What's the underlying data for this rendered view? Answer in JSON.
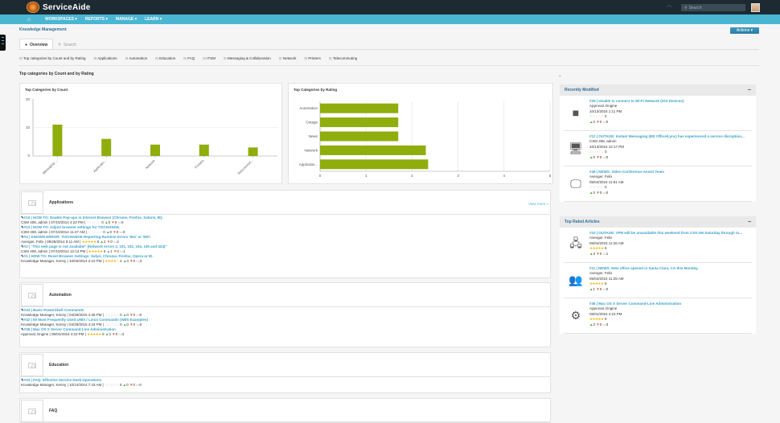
{
  "app": {
    "name": "ServiceAide",
    "search_placeholder": "Search"
  },
  "nav": {
    "items": [
      "WORKSPACES ▾",
      "REPORTS ▾",
      "MANAGE ▾",
      "LEARN ▾"
    ]
  },
  "page": {
    "breadcrumb": "Knowledge Management",
    "actions_label": "Actions ▾"
  },
  "tabs": {
    "overview": "Overview",
    "search": "Search"
  },
  "anchors": [
    "Top categories by Count and by Rating",
    "Applications",
    "Automation",
    "Education",
    "FAQ",
    "ITSM",
    "Messaging & Collaboration",
    "Network",
    "Printers",
    "Telecommuting"
  ],
  "section_title": "Top categories by Count and by Rating",
  "chart_data": [
    {
      "type": "bar",
      "title": "Top Categories by Count",
      "categories": [
        "Messaging ...",
        "Applicatio...",
        "Network",
        "Printers",
        "Telecommut..."
      ],
      "values": [
        11,
        6,
        4,
        4,
        3
      ],
      "yticks": [
        "0",
        "10",
        "20"
      ],
      "ylim": [
        0,
        20
      ],
      "color": "#8fad0c"
    },
    {
      "type": "bar",
      "orientation": "horizontal",
      "title": "Top Categories by Rating",
      "categories": [
        "Automation",
        "Outage",
        "News",
        "Network",
        "Applicatio..."
      ],
      "values": [
        1.7,
        1.7,
        1.7,
        2.3,
        2.35
      ],
      "xticks": [
        "0",
        "1",
        "2",
        "3",
        "4",
        "5"
      ],
      "xlim": [
        0,
        5
      ],
      "color": "#8fad0c"
    }
  ],
  "categories": [
    {
      "name": "Applications",
      "view_more": "View more »",
      "articles": [
        {
          "title": "#16 | HOW TO: Enable Pop-ups in Internet Browser (Chrome, Firefox, Safaris, IE).",
          "meta": "CSM 408, admin | 07/10/2014 4:22 PM |",
          "stars": "☆☆☆☆☆",
          "rating": "0",
          "up": "0",
          "down": "0",
          "comments": "0",
          "filled": false
        },
        {
          "title": "#13 | HOW TO: Adjust browser settings for TIXCHANGE.",
          "meta": "CSM 408, admin | 07/10/2014 11:47 AM |",
          "stars": "☆☆☆☆☆",
          "rating": "0",
          "up": "0",
          "down": "0",
          "comments": "0",
          "filled": false
        },
        {
          "title": "#4 | KNOWN ERROR: TIXCHANGE Reporting Runtime Errors '501' or '830'.",
          "meta": "Avenger, Felix | 09/28/2014 8:11 AM |",
          "stars": "★★★★★",
          "rating": "5",
          "up": "2",
          "down": "0",
          "comments": "2",
          "filled": true
        },
        {
          "title": "#2 | \"This web page is not available\" (Network errors 2, 101, 102, 104, 105 and 324)\"",
          "meta": "CSM 408, admin | 07/10/2014 12:14 PM |",
          "stars": "★★★★★",
          "rating": "5",
          "up": "1",
          "down": "0",
          "comments": "1",
          "filled": true
        },
        {
          "title": "#1 | HOW TO: Reset Browser Settings: Safari, Chrome, Firefox, Opera or IE.",
          "meta": "Knowledge Manager, Kenny | 10/02/2014 2:10 PM |",
          "stars": "★★★★☆",
          "rating": "4",
          "up": "4",
          "down": "0",
          "comments": "3",
          "filled": true
        }
      ]
    },
    {
      "name": "Automation",
      "articles": [
        {
          "title": "#43 | Basic PowerShell Commands",
          "meta": "Knowledge Manager, Kenny | 04/28/2015 4:39 PM |",
          "stars": "☆☆☆☆☆",
          "rating": "0",
          "up": "0",
          "down": "0",
          "comments": "0",
          "filled": false
        },
        {
          "title": "#42 | 50 Most Frequently Used UNIX / Linux Commands (With Examples)",
          "meta": "Knowledge Manager, Kenny | 04/28/2015 4:34 PM |",
          "stars": "☆☆☆☆☆",
          "rating": "0",
          "up": "0",
          "down": "0",
          "comments": "0",
          "filled": false
        },
        {
          "title": "#36 | Mac OS X Server Command-Line Administration",
          "meta": "Approval, Engine | 05/01/2015 4:23 PM |",
          "stars": "★★★★★",
          "rating": "5",
          "up": "3",
          "down": "0",
          "comments": "3",
          "filled": true
        }
      ]
    },
    {
      "name": "Education",
      "articles": [
        {
          "title": "#33 | FAQ: Effective Service Desk Operations",
          "meta": "Knowledge Manager, Kenny | 10/14/2014 7:43 AM |",
          "stars": "☆☆☆☆☆",
          "rating": "0",
          "up": "0",
          "down": "0",
          "comments": "0",
          "filled": false
        }
      ]
    },
    {
      "name": "FAQ",
      "articles": []
    }
  ],
  "recently_modified": {
    "title": "Recently Modified",
    "items": [
      {
        "icon": "apple",
        "title": "#29 | Unable to connect to Wi-Fi Network (iOS Devices)",
        "author": "Approval, Engine",
        "date": "10/13/2016 1:11 PM",
        "stars": "☆☆☆☆☆",
        "rating": "0",
        "up": "0",
        "down": "0",
        "comments": "0",
        "filled": false
      },
      {
        "icon": "computer",
        "title": "#12 | OUTAGE: Instant Messaging (MS Office/Lync) has experienced a service disruption...",
        "author": "CSM 408, admin",
        "date": "10/13/2016 12:17 PM",
        "stars": "☆☆☆☆☆",
        "rating": "0",
        "up": "0",
        "down": "0",
        "comments": "0",
        "filled": false
      },
      {
        "icon": "monitors",
        "title": "#46 | NEWS: Video Conference Assist Team",
        "author": "Avenger, Felix",
        "date": "05/04/2015 11:51 AM",
        "stars": "☆☆☆☆☆",
        "rating": "0",
        "up": "0",
        "down": "0",
        "comments": "0",
        "filled": false
      }
    ]
  },
  "top_rated": {
    "title": "Top Rated Articles",
    "items": [
      {
        "icon": "network-user",
        "title": "#10 | OUTAGE: VPN will be unavailable this weekend from 2:00 AM Saturday through to...",
        "author": "Avenger, Felix",
        "date": "05/04/2015 11:26 AM",
        "stars": "★★★★★",
        "rating": "5",
        "up": "3",
        "down": "0",
        "comments": "1",
        "filled": true
      },
      {
        "icon": "people",
        "title": "#11 | NEWS: New office opened in Santa Clara, CA this Monday.",
        "author": "Avenger, Felix",
        "date": "05/04/2015 11:25 AM",
        "stars": "★★★★★",
        "rating": "5",
        "up": "1",
        "down": "0",
        "comments": "0",
        "filled": true
      },
      {
        "icon": "gears",
        "title": "#36 | Mac OS X Server Command-Line Administration",
        "author": "Approval, Engine",
        "date": "05/01/2015 4:23 PM",
        "stars": "★★★★★",
        "rating": "5",
        "up": "3",
        "down": "0",
        "comments": "3",
        "filled": true
      }
    ]
  }
}
